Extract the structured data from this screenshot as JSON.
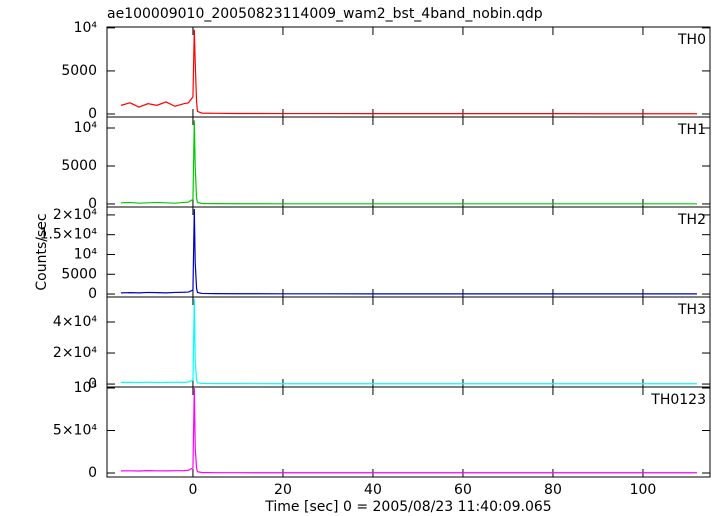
{
  "chart_data": [
    {
      "type": "line",
      "title": "ae100009010_20050823114009_wam2_bst_4band_nobin.qdp",
      "x": [
        -16,
        -14,
        -12,
        -10,
        -8,
        -6,
        -4,
        -2,
        -1,
        0,
        0.3,
        0.5,
        0.8,
        1,
        2,
        5,
        10,
        20,
        30,
        40,
        50,
        60,
        70,
        80,
        90,
        100,
        110,
        112
      ],
      "series": [
        {
          "name": "TH0",
          "color": "#ff0000",
          "values": [
            1000,
            1300,
            800,
            1200,
            1000,
            1400,
            900,
            1200,
            1300,
            2000,
            9800,
            6000,
            1500,
            300,
            100,
            80,
            60,
            50,
            50,
            40,
            40,
            40,
            40,
            40,
            30,
            30,
            30,
            30
          ]
        }
      ],
      "xlim": [
        -19.1,
        114.9
      ],
      "ylim": [
        -350,
        10100
      ],
      "yticks": [
        0,
        5000,
        {
          "value": 10000,
          "label": "10⁴"
        }
      ]
    },
    {
      "type": "line",
      "x": [
        -16,
        -14,
        -12,
        -10,
        -8,
        -6,
        -4,
        -2,
        -1,
        0,
        0.3,
        0.5,
        0.8,
        1,
        2,
        5,
        10,
        20,
        30,
        40,
        50,
        60,
        70,
        80,
        90,
        100,
        110,
        112
      ],
      "series": [
        {
          "name": "TH1",
          "color": "#00cc00",
          "values": [
            150,
            200,
            100,
            150,
            200,
            150,
            100,
            200,
            250,
            600,
            11000,
            5000,
            800,
            200,
            60,
            40,
            30,
            20,
            20,
            20,
            20,
            20,
            20,
            20,
            20,
            20,
            20,
            20
          ]
        }
      ],
      "xlim": [
        -19.1,
        114.9
      ],
      "ylim": [
        -400,
        11450
      ],
      "yticks": [
        0,
        5000,
        {
          "value": 10000,
          "label": "10⁴"
        }
      ]
    },
    {
      "type": "line",
      "ylabel": "Counts/sec",
      "x": [
        -16,
        -14,
        -12,
        -10,
        -8,
        -6,
        -4,
        -2,
        -1,
        0,
        0.3,
        0.5,
        0.8,
        1,
        2,
        5,
        10,
        20,
        30,
        40,
        50,
        60,
        70,
        80,
        90,
        100,
        110,
        112
      ],
      "series": [
        {
          "name": "TH2",
          "color": "#0000c0",
          "values": [
            300,
            350,
            300,
            400,
            350,
            300,
            400,
            450,
            500,
            1000,
            21500,
            8000,
            1500,
            400,
            150,
            100,
            80,
            60,
            60,
            50,
            50,
            50,
            50,
            50,
            50,
            50,
            50,
            50
          ]
        }
      ],
      "xlim": [
        -19.1,
        114.9
      ],
      "ylim": [
        -750,
        22000
      ],
      "yticks": [
        0,
        5000,
        {
          "value": 10000,
          "label": "10⁴"
        },
        {
          "value": 15000,
          "label": "1.5×10⁴"
        },
        {
          "value": 20000,
          "label": "2×10⁴"
        }
      ]
    },
    {
      "type": "line",
      "x": [
        -16,
        -14,
        -12,
        -10,
        -8,
        -6,
        -4,
        -2,
        -1,
        0,
        0.3,
        0.5,
        0.8,
        1,
        2,
        5,
        10,
        20,
        30,
        40,
        50,
        60,
        70,
        80,
        90,
        100,
        110,
        112
      ],
      "series": [
        {
          "name": "TH3",
          "color": "#00ffff",
          "values": [
            1000,
            1100,
            1000,
            1200,
            1000,
            1100,
            1200,
            1100,
            1300,
            2500,
            55000,
            15000,
            2500,
            800,
            400,
            300,
            250,
            200,
            200,
            200,
            200,
            200,
            200,
            200,
            200,
            200,
            200,
            200
          ]
        }
      ],
      "xlim": [
        -19.1,
        114.9
      ],
      "ylim": [
        -1900,
        56100
      ],
      "yticks": [
        0,
        {
          "value": 20000,
          "label": "2×10⁴"
        },
        {
          "value": 40000,
          "label": "4×10⁴"
        }
      ]
    },
    {
      "type": "line",
      "xlabel": "Time [sec] 0 = 2005/08/23 11:40:09.065",
      "x": [
        -16,
        -14,
        -12,
        -10,
        -8,
        -6,
        -4,
        -2,
        -1,
        0,
        0.3,
        0.5,
        0.8,
        1,
        2,
        5,
        10,
        20,
        30,
        40,
        50,
        60,
        70,
        80,
        90,
        100,
        110,
        112
      ],
      "series": [
        {
          "name": "TH0123",
          "color": "#ff00ff",
          "values": [
            2500,
            2600,
            2400,
            2800,
            2600,
            2500,
            2700,
            2800,
            3200,
            6000,
            100000,
            30000,
            6000,
            1500,
            600,
            400,
            350,
            300,
            300,
            300,
            300,
            300,
            300,
            300,
            300,
            300,
            300,
            300
          ]
        }
      ],
      "xlim": [
        -19.1,
        114.9
      ],
      "ylim": [
        -4700,
        101200
      ],
      "xticks": [
        0,
        20,
        40,
        60,
        80,
        100
      ],
      "yticks": [
        0,
        {
          "value": 50000,
          "label": "5×10⁴"
        },
        {
          "value": 100000,
          "label": "10⁵"
        }
      ]
    }
  ]
}
